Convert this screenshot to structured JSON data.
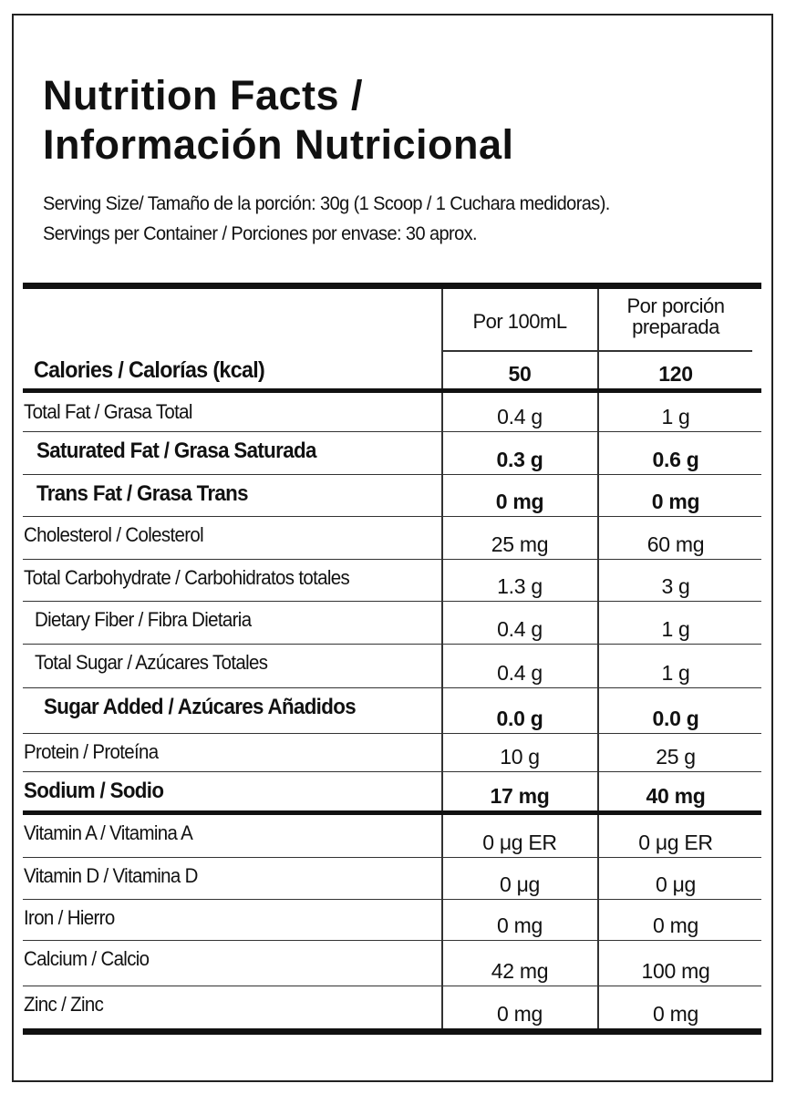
{
  "title": {
    "line1": "Nutrition Facts /",
    "line2": "Información Nutricional"
  },
  "serving_size": "Serving Size/ Tamaño de la porción: 30g  (1 Scoop / 1 Cuchara medidoras).",
  "servings_per_container": "Servings per Container / Porciones por envase: 30 aprox.",
  "columns": {
    "col1": "Por 100mL",
    "col2_line1": "Por porción",
    "col2_line2": "preparada"
  },
  "calories": {
    "label": "Calories / Calorías (kcal)",
    "per100": "50",
    "perServing": "120"
  },
  "rows": [
    {
      "label": "Total Fat / Grasa Total",
      "per100": "0.4 g",
      "perServing": "1 g"
    },
    {
      "label": "Saturated Fat / Grasa Saturada",
      "per100": "0.3 g",
      "perServing": "0.6 g"
    },
    {
      "label": "Trans Fat / Grasa Trans",
      "per100": "0 mg",
      "perServing": "0 mg"
    },
    {
      "label": "Cholesterol / Colesterol",
      "per100": "25 mg",
      "perServing": "60 mg"
    },
    {
      "label": "Total Carbohydrate / Carbohidratos totales",
      "per100": "1.3 g",
      "perServing": "3 g"
    },
    {
      "label": "Dietary Fiber / Fibra Dietaria",
      "per100": "0.4 g",
      "perServing": "1 g"
    },
    {
      "label": "Total Sugar / Azúcares Totales",
      "per100": "0.4 g",
      "perServing": "1 g"
    },
    {
      "label": "Sugar Added / Azúcares Añadidos",
      "per100": "0.0 g",
      "perServing": "0.0 g"
    },
    {
      "label": "Protein / Proteína",
      "per100": "10 g",
      "perServing": "25 g"
    },
    {
      "label": "Sodium / Sodio",
      "per100": "17 mg",
      "perServing": "40 mg"
    },
    {
      "label": "Vitamin A / Vitamina A",
      "per100": "0 μg ER",
      "perServing": "0 μg ER"
    },
    {
      "label": "Vitamin D / Vitamina D",
      "per100": "0 μg",
      "perServing": "0 μg"
    },
    {
      "label": "Iron / Hierro",
      "per100": "0 mg",
      "perServing": "0 mg"
    },
    {
      "label": "Calcium / Calcio",
      "per100": "42 mg",
      "perServing": "100 mg"
    },
    {
      "label": "Zinc / Zinc",
      "per100": "0 mg",
      "perServing": "0 mg"
    }
  ]
}
